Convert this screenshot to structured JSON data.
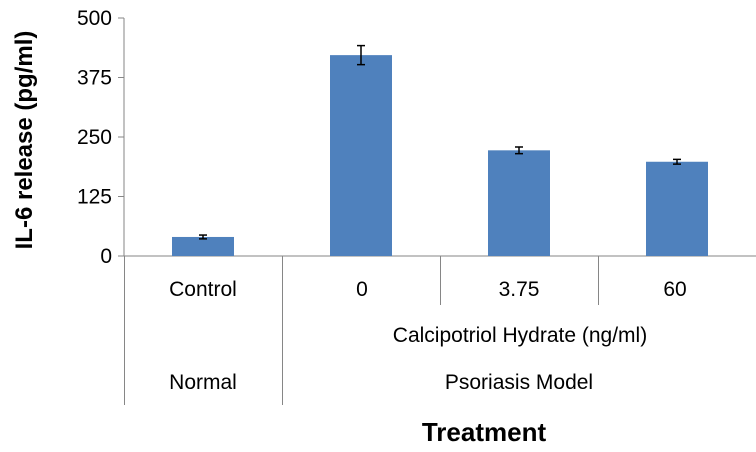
{
  "chart_data": {
    "type": "bar",
    "categories": [
      "Control",
      "0",
      "3.75",
      "60"
    ],
    "values": [
      40,
      422,
      222,
      198
    ],
    "errors": [
      4,
      20,
      7,
      5
    ],
    "ylabel": "IL-6 release (pg/ml)",
    "xlabel": "Treatment",
    "ylim": [
      0,
      500
    ],
    "yticks": [
      "0",
      "125",
      "250",
      "375",
      "500"
    ],
    "sub_group": "Calcipotriol Hydrate (ng/ml)",
    "groups": [
      "Normal",
      "Psoriasis Model"
    ],
    "grid": false,
    "legend": "none",
    "bar_color": "#4f81bd",
    "axis_color": "#868686"
  }
}
